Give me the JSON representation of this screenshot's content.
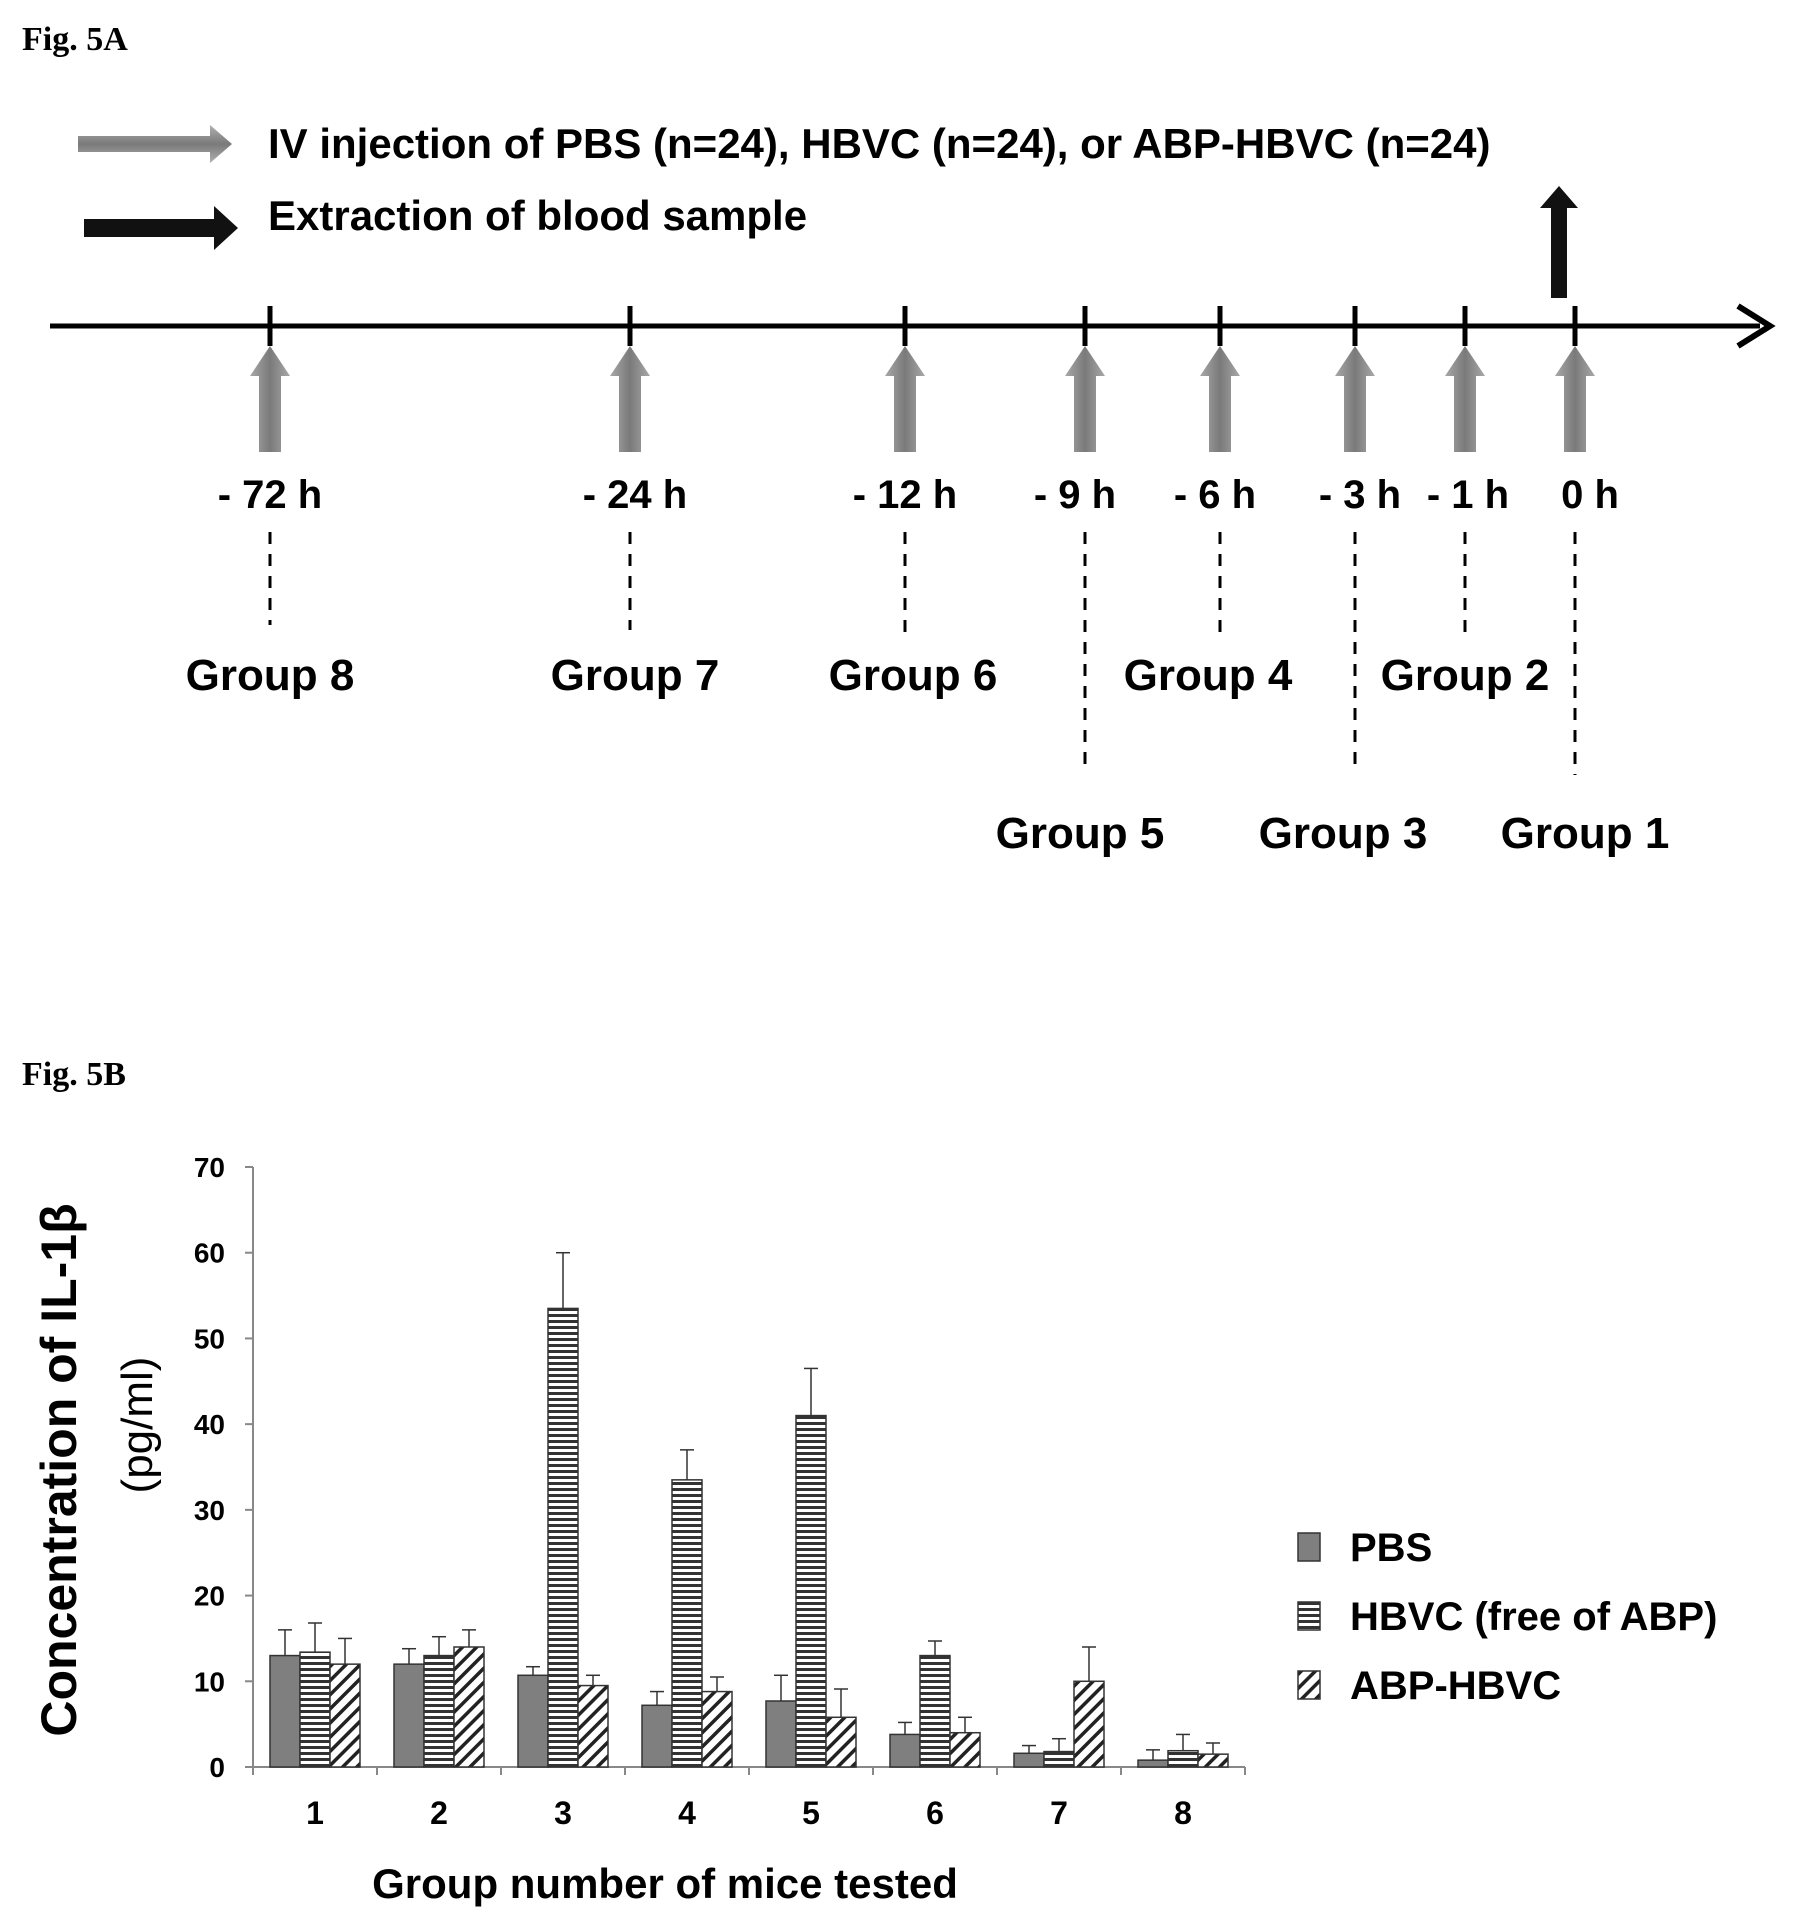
{
  "fig_a": {
    "label": "Fig. 5A",
    "legend": {
      "injection": "IV injection of PBS (n=24), HBVC (n=24), or ABP-HBVC (n=24)",
      "extraction": "Extraction of blood sample"
    },
    "timepoints": [
      "- 72 h",
      "- 24 h",
      "- 12 h",
      "- 9 h",
      "- 6 h",
      "- 3 h",
      "- 1 h",
      "0 h"
    ],
    "groups_upper": [
      "Group 8",
      "Group 7",
      "Group 6",
      "Group 4",
      "Group 2"
    ],
    "groups_lower": [
      "Group 5",
      "Group 3",
      "Group 1"
    ],
    "colors": {
      "injection_arrow": "#8c8c8c",
      "extraction_arrow": "#111111"
    }
  },
  "fig_b": {
    "label": "Fig. 5B",
    "chart_data": {
      "type": "bar",
      "xlabel": "Group number of mice tested",
      "ylabel": "Concentration of IL-1β",
      "ylabel_unit": "(pg/ml)",
      "ylim": [
        0,
        70
      ],
      "yticks": [
        0,
        10,
        20,
        30,
        40,
        50,
        60,
        70
      ],
      "categories": [
        "1",
        "2",
        "3",
        "4",
        "5",
        "6",
        "7",
        "8"
      ],
      "series": [
        {
          "name": "PBS",
          "values": [
            13,
            12,
            10.7,
            7.2,
            7.7,
            3.8,
            1.6,
            0.8
          ],
          "errors": [
            3,
            1.8,
            1,
            1.6,
            3,
            1.4,
            0.9,
            1.2
          ],
          "pattern": "solid"
        },
        {
          "name": "HBVC (free of ABP)",
          "values": [
            13.4,
            13,
            53.5,
            33.5,
            41,
            13,
            1.8,
            1.9
          ],
          "errors": [
            3.4,
            2.2,
            6.5,
            3.5,
            5.5,
            1.7,
            1.5,
            1.9
          ],
          "pattern": "horizontal-lines"
        },
        {
          "name": "ABP-HBVC",
          "values": [
            12,
            14,
            9.5,
            8.8,
            5.8,
            4,
            10,
            1.5
          ],
          "errors": [
            3,
            2,
            1.2,
            1.7,
            3.3,
            1.8,
            4,
            1.3
          ],
          "pattern": "diagonal-lines"
        }
      ],
      "legend_position": "right"
    }
  }
}
